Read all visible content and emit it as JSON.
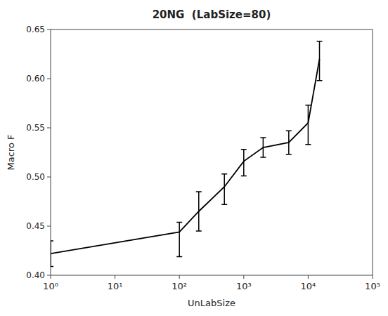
{
  "chart_data": {
    "type": "line",
    "title": "20NG  (LabSize=80)",
    "xlabel": "UnLabSize",
    "ylabel": "Macro F",
    "x": [
      1,
      100,
      200,
      500,
      1000,
      2000,
      5000,
      10000,
      15000
    ],
    "values": [
      0.422,
      0.444,
      0.465,
      0.49,
      0.516,
      0.53,
      0.535,
      0.555,
      0.62
    ],
    "yerr_low": [
      0.013,
      0.025,
      0.02,
      0.018,
      0.015,
      0.01,
      0.012,
      0.022,
      0.022
    ],
    "yerr_high": [
      0.013,
      0.01,
      0.02,
      0.013,
      0.012,
      0.01,
      0.012,
      0.018,
      0.018
    ],
    "xlim": [
      1,
      100000
    ],
    "ylim": [
      0.4,
      0.65
    ],
    "log": "x",
    "xticks": [
      {
        "value": 1,
        "label": "10⁰"
      },
      {
        "value": 10,
        "label": "10¹"
      },
      {
        "value": 100,
        "label": "10²"
      },
      {
        "value": 1000,
        "label": "10³"
      },
      {
        "value": 10000,
        "label": "10⁴"
      },
      {
        "value": 100000,
        "label": "10⁵"
      }
    ],
    "yticks": [
      {
        "value": 0.4,
        "label": "0.40"
      },
      0.45,
      {
        "value": 0.5,
        "label": "0.50"
      },
      0.55,
      {
        "value": 0.6,
        "label": "0.60"
      },
      0.65
    ],
    "color": "black",
    "line_style": "solid",
    "grid": false
  }
}
